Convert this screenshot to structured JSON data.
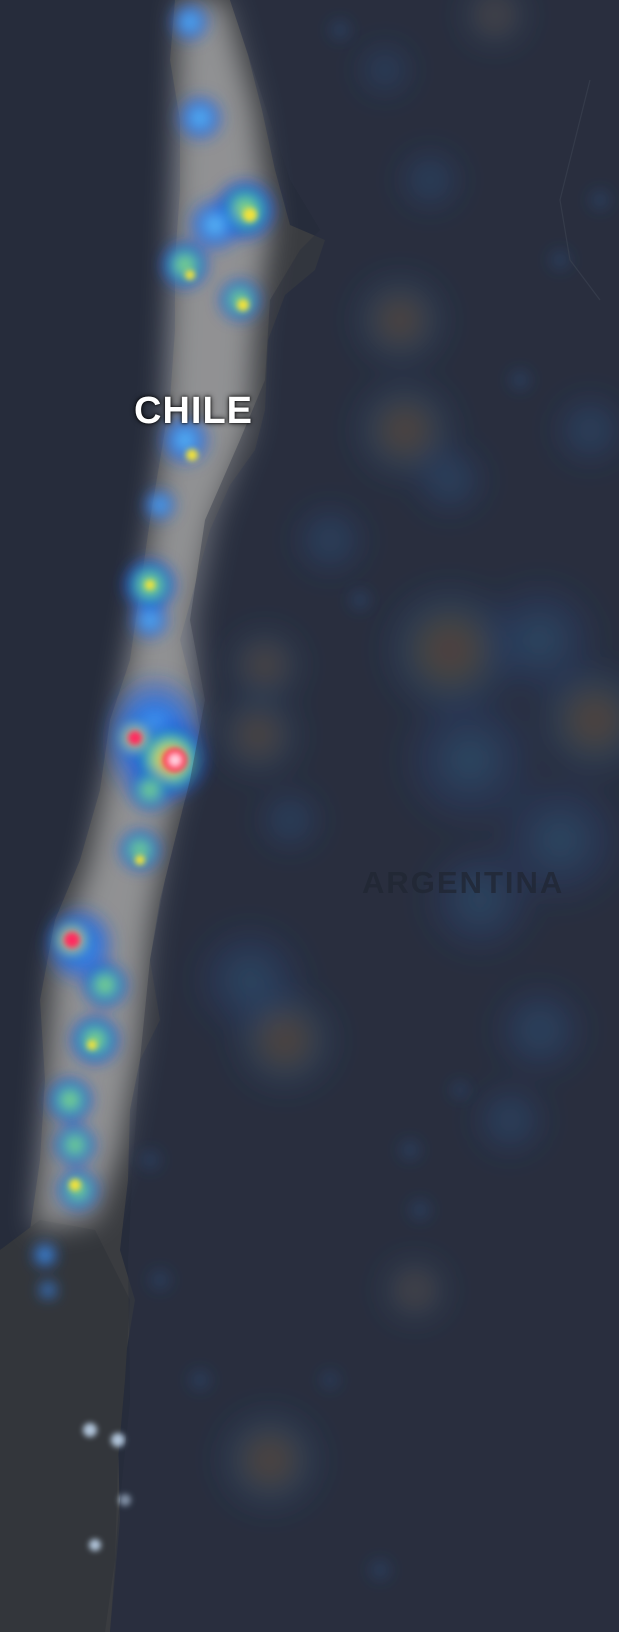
{
  "map": {
    "labels": {
      "chile": "CHILE",
      "argentina": "ARGENTINA"
    },
    "colors": {
      "ocean": "#262c3b",
      "land_chile": "#3a3c40",
      "land_argentina": "#2d3340",
      "heat_low": "#1e4fd6",
      "heat_mid": "#2fd0a0",
      "heat_high": "#f2e23a",
      "heat_peak": "#ff2a60"
    },
    "layers": [
      "base-map",
      "heatmap"
    ]
  }
}
